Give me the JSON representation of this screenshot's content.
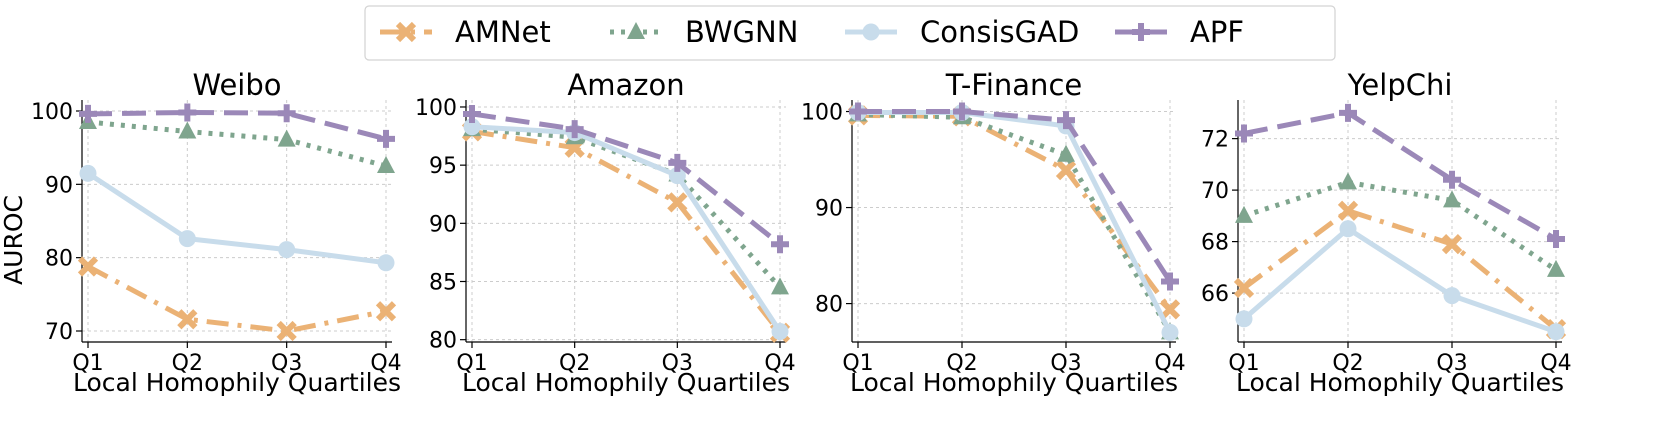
{
  "figure": {
    "ylabel": "AUROC",
    "legend": {
      "placement": "top-center",
      "entries": [
        {
          "name": "AMNet",
          "color": "#EBB275",
          "marker": "x-mark",
          "dash": "dashdot"
        },
        {
          "name": "BWGNN",
          "color": "#7FA58E",
          "marker": "triangle",
          "dash": "dotted"
        },
        {
          "name": "ConsisGAD",
          "color": "#C8DCEB",
          "marker": "circle",
          "dash": "solid"
        },
        {
          "name": "APF",
          "color": "#9B88B8",
          "marker": "plus",
          "dash": "dashed"
        }
      ]
    }
  },
  "chart_data": [
    {
      "type": "line",
      "title": "Weibo",
      "xlabel": "Local Homophily Quartiles",
      "ylabel": "AUROC",
      "categories": [
        "Q1",
        "Q2",
        "Q3",
        "Q4"
      ],
      "ylim": [
        68.5,
        101.5
      ],
      "yticks": [
        70,
        80,
        90,
        100
      ],
      "grid": true,
      "series": [
        {
          "name": "AMNet",
          "values": [
            78.8,
            71.6,
            70.0,
            72.7
          ]
        },
        {
          "name": "BWGNN",
          "values": [
            98.5,
            97.2,
            96.1,
            92.5
          ]
        },
        {
          "name": "ConsisGAD",
          "values": [
            91.5,
            82.6,
            81.1,
            79.3
          ]
        },
        {
          "name": "APF",
          "values": [
            99.6,
            99.8,
            99.7,
            96.2
          ]
        }
      ]
    },
    {
      "type": "line",
      "title": "Amazon",
      "xlabel": "Local Homophily Quartiles",
      "ylabel": "",
      "categories": [
        "Q1",
        "Q2",
        "Q3",
        "Q4"
      ],
      "ylim": [
        79.8,
        100.6
      ],
      "yticks": [
        80,
        85,
        90,
        95,
        100
      ],
      "grid": true,
      "series": [
        {
          "name": "AMNet",
          "values": [
            97.9,
            96.5,
            91.8,
            80.6
          ]
        },
        {
          "name": "BWGNN",
          "values": [
            98.1,
            97.4,
            94.2,
            84.5
          ]
        },
        {
          "name": "ConsisGAD",
          "values": [
            98.3,
            97.8,
            94.1,
            80.7
          ]
        },
        {
          "name": "APF",
          "values": [
            99.4,
            98.1,
            95.2,
            88.2
          ]
        }
      ]
    },
    {
      "type": "line",
      "title": "T-Finance",
      "xlabel": "Local Homophily Quartiles",
      "ylabel": "",
      "categories": [
        "Q1",
        "Q2",
        "Q3",
        "Q4"
      ],
      "ylim": [
        76,
        101.2
      ],
      "yticks": [
        80,
        90,
        100
      ],
      "grid": true,
      "series": [
        {
          "name": "AMNet",
          "values": [
            99.6,
            99.5,
            93.9,
            79.4
          ]
        },
        {
          "name": "BWGNN",
          "values": [
            99.7,
            99.4,
            95.5,
            77.0
          ]
        },
        {
          "name": "ConsisGAD",
          "values": [
            99.9,
            99.9,
            98.5,
            77.0
          ]
        },
        {
          "name": "APF",
          "values": [
            100.0,
            100.0,
            99.1,
            82.3
          ]
        }
      ]
    },
    {
      "type": "line",
      "title": "YelpChi",
      "xlabel": "Local Homophily Quartiles",
      "ylabel": "",
      "categories": [
        "Q1",
        "Q2",
        "Q3",
        "Q4"
      ],
      "ylim": [
        64.1,
        73.5
      ],
      "yticks": [
        66,
        68,
        70,
        72
      ],
      "grid": true,
      "series": [
        {
          "name": "AMNet",
          "values": [
            66.2,
            69.2,
            67.9,
            64.6
          ]
        },
        {
          "name": "BWGNN",
          "values": [
            69.0,
            70.3,
            69.6,
            66.9
          ]
        },
        {
          "name": "ConsisGAD",
          "values": [
            65.0,
            68.5,
            65.9,
            64.5
          ]
        },
        {
          "name": "APF",
          "values": [
            72.2,
            73.0,
            70.4,
            68.1
          ]
        }
      ]
    }
  ]
}
